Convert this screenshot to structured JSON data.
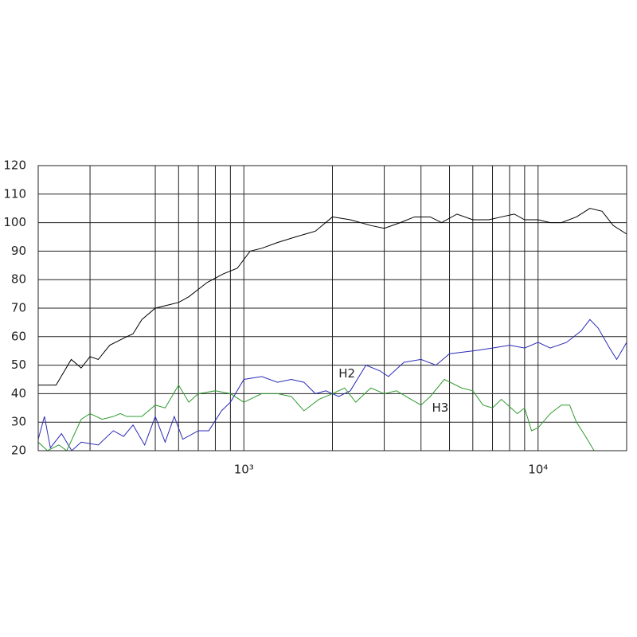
{
  "chart_data": {
    "type": "line",
    "xscale": "log",
    "grid": true,
    "xlim": [
      200,
      20000
    ],
    "ylim": [
      20,
      120
    ],
    "yticks": [
      20,
      30,
      40,
      50,
      60,
      70,
      80,
      90,
      100,
      110,
      120
    ],
    "xticks": [
      {
        "value": 1000,
        "label": "10³"
      },
      {
        "value": 10000,
        "label": "10⁴"
      }
    ],
    "xgrid": [
      300,
      500,
      600,
      700,
      800,
      900,
      2000,
      3000,
      4000,
      5000,
      6000,
      7000,
      8000,
      9000
    ],
    "annotations": [
      {
        "text": "H2",
        "x": 2240,
        "y": 47
      },
      {
        "text": "H3",
        "x": 4650,
        "y": 35
      }
    ],
    "series": [
      {
        "color": "#000000",
        "x": [
          200,
          230,
          259,
          280,
          300,
          320,
          350,
          400,
          420,
          450,
          500,
          600,
          650,
          750,
          850,
          950,
          1050,
          1150,
          1300,
          1500,
          1750,
          2000,
          2300,
          2700,
          3000,
          3400,
          3800,
          4300,
          4700,
          5300,
          6000,
          6800,
          7500,
          8300,
          9000,
          10000,
          11000,
          12000,
          13500,
          15000,
          16500,
          18000,
          20000
        ],
        "values": [
          43,
          43,
          52,
          49,
          53,
          52,
          57,
          60,
          61,
          66,
          70,
          72,
          74,
          79,
          82,
          84,
          90,
          91,
          93,
          95,
          97,
          102,
          101,
          99,
          98,
          100,
          102,
          102,
          100,
          103,
          101,
          101,
          102,
          103,
          101,
          101,
          100,
          100,
          102,
          105,
          104,
          99,
          96
        ]
      },
      {
        "color": "#2a2ab8",
        "x": [
          200,
          210,
          220,
          240,
          260,
          280,
          320,
          360,
          390,
          420,
          460,
          500,
          540,
          580,
          620,
          700,
          760,
          840,
          900,
          1000,
          1150,
          1300,
          1450,
          1600,
          1750,
          1900,
          2100,
          2300,
          2600,
          2900,
          3100,
          3500,
          4000,
          4500,
          5000,
          6000,
          7000,
          8000,
          9000,
          10000,
          11000,
          12500,
          14000,
          15000,
          16000,
          17500,
          18500,
          20000
        ],
        "values": [
          24,
          32,
          21,
          26,
          20,
          23,
          22,
          27,
          25,
          29,
          22,
          32,
          23,
          32,
          24,
          27,
          27,
          34,
          37,
          45,
          46,
          44,
          45,
          44,
          40,
          41,
          39,
          41,
          50,
          48,
          46,
          51,
          52,
          50,
          54,
          55,
          56,
          57,
          56,
          58,
          56,
          58,
          62,
          66,
          63,
          56,
          52,
          58
        ]
      },
      {
        "color": "#2e9a2e",
        "x": [
          200,
          215,
          235,
          250,
          280,
          300,
          330,
          360,
          380,
          400,
          450,
          500,
          540,
          600,
          650,
          700,
          800,
          900,
          1000,
          1150,
          1300,
          1450,
          1600,
          1800,
          2000,
          2200,
          2400,
          2700,
          3000,
          3300,
          3700,
          4000,
          4300,
          4800,
          5500,
          6000,
          6500,
          7000,
          7500,
          8500,
          9000,
          9500,
          10000,
          11000,
          12000,
          12800,
          13500,
          14500,
          15500
        ],
        "values": [
          23,
          20,
          22,
          20,
          31,
          33,
          31,
          32,
          33,
          32,
          32,
          36,
          35,
          43,
          37,
          40,
          41,
          40,
          37,
          40,
          40,
          39,
          34,
          38,
          40,
          42,
          37,
          42,
          40,
          41,
          38,
          36,
          39,
          45,
          42,
          41,
          36,
          35,
          38,
          33,
          35,
          27,
          28,
          33,
          36,
          36,
          30,
          25,
          20
        ]
      }
    ]
  }
}
